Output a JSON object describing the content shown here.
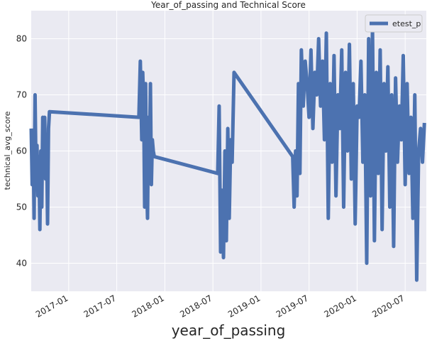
{
  "chart_data": {
    "type": "line",
    "title": "Year_of_passing and Technical Score",
    "xlabel": "year_of_passing",
    "ylabel": "technical_avg_score",
    "x": [
      2016.61,
      2016.62,
      2016.63,
      2016.64,
      2016.645,
      2016.65,
      2016.66,
      2016.67,
      2016.68,
      2016.69,
      2016.7,
      2016.71,
      2016.72,
      2016.73,
      2016.74,
      2016.75,
      2016.76,
      2016.77,
      2016.78,
      2016.79,
      2016.8,
      2017.73,
      2017.745,
      2017.76,
      2017.77,
      2017.78,
      2017.79,
      2017.8,
      2017.81,
      2017.82,
      2017.83,
      2017.84,
      2017.85,
      2017.86,
      2017.87,
      2017.88,
      2017.89,
      2018.55,
      2018.565,
      2018.58,
      2018.595,
      2018.61,
      2018.625,
      2018.64,
      2018.655,
      2018.67,
      2018.685,
      2018.7,
      2018.72,
      2019.33,
      2019.345,
      2019.36,
      2019.375,
      2019.39,
      2019.405,
      2019.42,
      2019.44,
      2019.46,
      2019.48,
      2019.5,
      2019.52,
      2019.54,
      2019.56,
      2019.58,
      2019.6,
      2019.62,
      2019.64,
      2019.66,
      2019.68,
      2019.7,
      2019.72,
      2019.74,
      2019.76,
      2019.78,
      2019.8,
      2019.82,
      2019.84,
      2019.86,
      2019.88,
      2019.9,
      2019.92,
      2019.94,
      2019.96,
      2019.98,
      2020.0,
      2020.02,
      2020.04,
      2020.06,
      2020.08,
      2020.1,
      2020.12,
      2020.14,
      2020.16,
      2020.18,
      2020.2,
      2020.22,
      2020.24,
      2020.26,
      2020.28,
      2020.3,
      2020.32,
      2020.34,
      2020.36,
      2020.38,
      2020.4,
      2020.42,
      2020.44,
      2020.46,
      2020.48,
      2020.5,
      2020.52,
      2020.54,
      2020.56,
      2020.58,
      2020.6,
      2020.62,
      2020.64,
      2020.66,
      2020.68,
      2020.7
    ],
    "series": [
      {
        "name": "etest_p",
        "color": "#4c72b0",
        "values": [
          64,
          54,
          62,
          48,
          60,
          70,
          56,
          61,
          52,
          59,
          46,
          60,
          50,
          66,
          58,
          66,
          55,
          62,
          47,
          64,
          67,
          66,
          76,
          62,
          74,
          68,
          50,
          72,
          55,
          48,
          66,
          58,
          72,
          54,
          62,
          60,
          59,
          56,
          68,
          42,
          53,
          41,
          60,
          44,
          64,
          48,
          62,
          58,
          74,
          59,
          50,
          60,
          52,
          72,
          56,
          78,
          68,
          76,
          72,
          66,
          78,
          64,
          74,
          70,
          80,
          68,
          76,
          62,
          81,
          48,
          72,
          58,
          77,
          52,
          70,
          64,
          78,
          50,
          74,
          60,
          79,
          55,
          72,
          47,
          68,
          66,
          76,
          58,
          70,
          40,
          80,
          52,
          82,
          44,
          74,
          56,
          78,
          46,
          72,
          60,
          75,
          50,
          70,
          43,
          73,
          58,
          68,
          62,
          77,
          54,
          72,
          56,
          66,
          48,
          70,
          37,
          60,
          64,
          58,
          65
        ]
      }
    ],
    "xlim": [
      2016.61,
      2020.72
    ],
    "ylim": [
      35,
      85
    ],
    "xticks": [
      {
        "value": 2017.0,
        "label": "2017-01"
      },
      {
        "value": 2017.5,
        "label": "2017-07"
      },
      {
        "value": 2018.0,
        "label": "2018-01"
      },
      {
        "value": 2018.5,
        "label": "2018-07"
      },
      {
        "value": 2019.0,
        "label": "2019-01"
      },
      {
        "value": 2019.5,
        "label": "2019-07"
      },
      {
        "value": 2020.0,
        "label": "2020-01"
      },
      {
        "value": 2020.5,
        "label": "2020-07"
      }
    ],
    "yticks": [
      40,
      50,
      60,
      70,
      80
    ],
    "grid": true,
    "legend": "upper right"
  }
}
